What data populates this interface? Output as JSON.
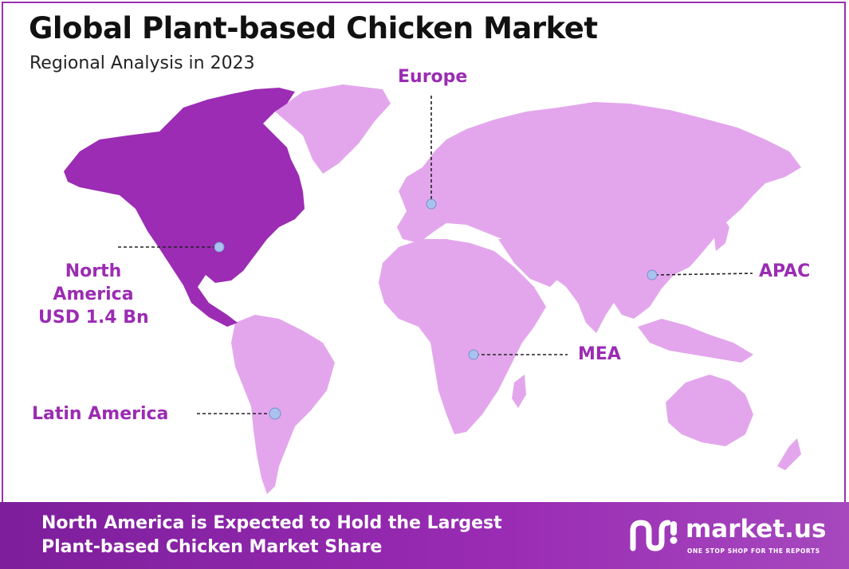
{
  "header": {
    "title": "Global Plant-based Chicken Market",
    "subtitle": "Regional Analysis in 2023"
  },
  "colors": {
    "highlight_region": "#9b2cb3",
    "other_regions": "#e3a6ec",
    "marker": "#a9c2ee",
    "footer": "#8a27a9"
  },
  "regions": [
    {
      "name": "North America",
      "highlighted": true,
      "value": "USD 1.4 Bn"
    },
    {
      "name": "Europe",
      "highlighted": false
    },
    {
      "name": "APAC",
      "highlighted": false
    },
    {
      "name": "MEA",
      "highlighted": false
    },
    {
      "name": "Latin America",
      "highlighted": false
    }
  ],
  "labels": {
    "north_america_line1": "North",
    "north_america_line2": "America",
    "north_america_value": "USD 1.4 Bn",
    "europe": "Europe",
    "apac": "APAC",
    "mea": "MEA",
    "latin_america": "Latin America"
  },
  "footer": {
    "line1": "North America is Expected to Hold the Largest",
    "line2": "Plant-based Chicken Market Share"
  },
  "brand": {
    "name": "market.us",
    "tagline": "ONE STOP SHOP FOR THE REPORTS",
    "logo_icon": "market-us-logo-icon"
  }
}
